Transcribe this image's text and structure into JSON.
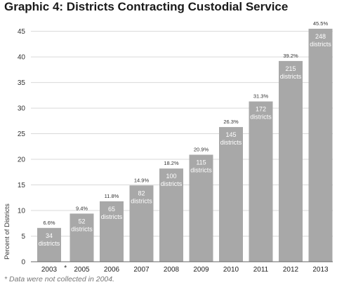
{
  "chart_data": {
    "type": "bar",
    "title": "Graphic 4: Districts Contracting Custodial Service",
    "ylabel": "Percent of Districts",
    "xlabel": "",
    "ylim": [
      0,
      47
    ],
    "yticks": [
      0,
      5,
      10,
      15,
      20,
      25,
      30,
      35,
      40,
      45
    ],
    "grid": true,
    "categories": [
      "2003",
      "2005",
      "2006",
      "2007",
      "2008",
      "2009",
      "2010",
      "2011",
      "2012",
      "2013"
    ],
    "values": [
      6.6,
      9.4,
      11.8,
      14.9,
      18.2,
      20.9,
      26.3,
      31.3,
      39.2,
      45.5
    ],
    "percent_labels": [
      "6.6%",
      "9.4%",
      "11.8%",
      "14.9%",
      "18.2%",
      "20.9%",
      "26.3%",
      "31.3%",
      "39.2%",
      "45.5%"
    ],
    "district_counts": [
      "34",
      "52",
      "65",
      "82",
      "100",
      "115",
      "145",
      "172",
      "215",
      "248"
    ],
    "count_unit": "districts",
    "gap_marker": "*",
    "bar_color": "#a8a8a8",
    "footnote": "* Data were not collected in 2004."
  }
}
